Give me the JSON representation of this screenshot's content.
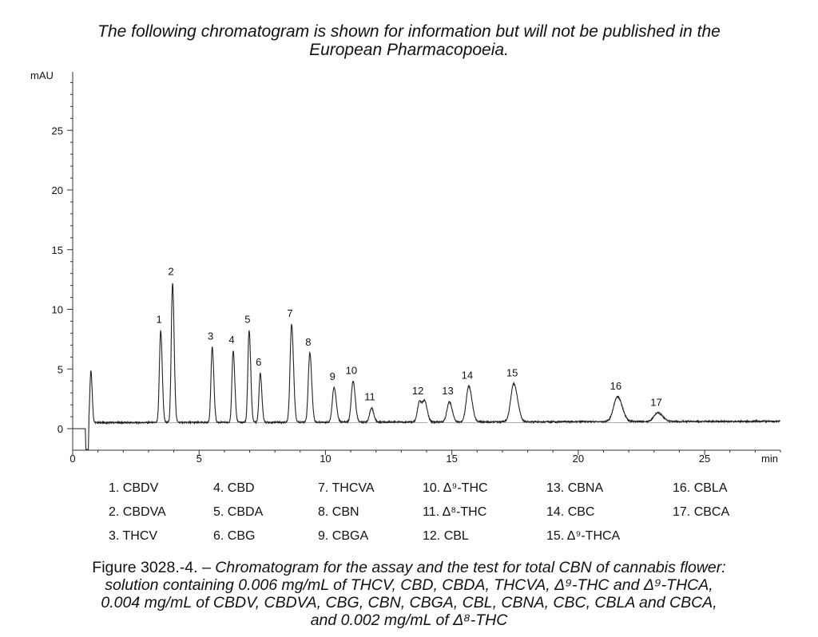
{
  "notice": {
    "line1": "The following chromatogram is shown for information but will not be published in the",
    "line2": "European Pharmacopoeia."
  },
  "chart_data": {
    "type": "line",
    "ylabel": "mAU",
    "xlabel": "min",
    "xlim": [
      0,
      28
    ],
    "ylim": [
      -1,
      30
    ],
    "x_ticks": [
      0,
      5,
      10,
      15,
      20,
      25
    ],
    "y_ticks": [
      0,
      5,
      10,
      15,
      20,
      25
    ],
    "baseline": 0.5,
    "grid": false,
    "series": [
      {
        "peaks": [
          {
            "label": "",
            "rt": 0.72,
            "height": 4.4,
            "width": 0.04
          },
          {
            "label": "1",
            "rt": 3.48,
            "height": 7.7,
            "width": 0.05
          },
          {
            "label": "2",
            "rt": 3.95,
            "height": 11.7,
            "width": 0.05
          },
          {
            "label": "3",
            "rt": 5.52,
            "height": 6.3,
            "width": 0.05
          },
          {
            "label": "4",
            "rt": 6.35,
            "height": 6.0,
            "width": 0.05
          },
          {
            "label": "5",
            "rt": 6.98,
            "height": 7.7,
            "width": 0.05
          },
          {
            "label": "6",
            "rt": 7.42,
            "height": 4.1,
            "width": 0.05
          },
          {
            "label": "7",
            "rt": 8.66,
            "height": 8.2,
            "width": 0.06
          },
          {
            "label": "8",
            "rt": 9.38,
            "height": 5.8,
            "width": 0.06
          },
          {
            "label": "9",
            "rt": 10.34,
            "height": 2.9,
            "width": 0.07
          },
          {
            "label": "10",
            "rt": 11.09,
            "height": 3.4,
            "width": 0.07
          },
          {
            "label": "11",
            "rt": 11.82,
            "height": 1.2,
            "width": 0.07
          },
          {
            "label": "12",
            "rt": 13.72,
            "height": 1.7,
            "width": 0.08
          },
          {
            "label": "",
            "rt": 13.93,
            "height": 1.6,
            "width": 0.08
          },
          {
            "label": "13",
            "rt": 14.9,
            "height": 1.7,
            "width": 0.09
          },
          {
            "label": "14",
            "rt": 15.67,
            "height": 3.0,
            "width": 0.1
          },
          {
            "label": "15",
            "rt": 17.45,
            "height": 3.2,
            "width": 0.12
          },
          {
            "label": "16",
            "rt": 21.55,
            "height": 2.1,
            "width": 0.15
          },
          {
            "label": "17",
            "rt": 23.15,
            "height": 0.75,
            "width": 0.15
          }
        ]
      }
    ]
  },
  "legend": {
    "items": [
      "1. CBDV",
      "2. CBDVA",
      "3. THCV",
      "4. CBD",
      "5. CBDA",
      "6. CBG",
      "7. THCVA",
      "8. CBN",
      "9. CBGA",
      "10. Δ⁹-THC",
      "11. Δ⁸-THC",
      "12. CBL",
      "13. CBNA",
      "14. CBC",
      "15. Δ⁹-THCA",
      "16. CBLA",
      "17. CBCA"
    ]
  },
  "caption": {
    "prefix": "Figure 3028.-4. – ",
    "line1": "Chromatogram for the assay and the test for total CBN of cannabis flower:",
    "line2": "solution containing 0.006 mg/mL of THCV, CBD, CBDA, THCVA, Δ⁹-THC and Δ⁹-THCA,",
    "line3": "0.004 mg/mL of CBDV, CBDVA, CBG, CBN, CBGA, CBL, CBNA, CBC, CBLA and CBCA,",
    "line4": "and 0.002 mg/mL of Δ⁸-THC"
  }
}
